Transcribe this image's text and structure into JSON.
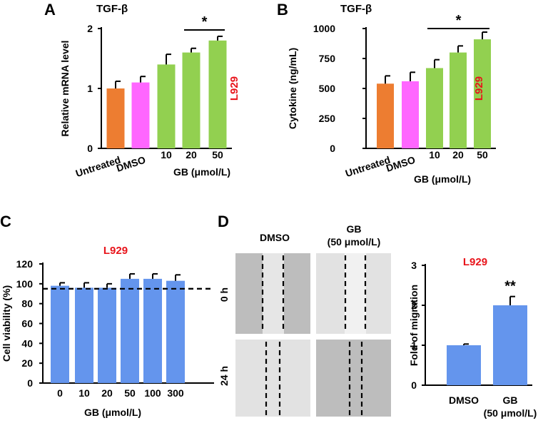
{
  "panels": {
    "A": {
      "letter": "A",
      "title": "TGF-β",
      "cell_line": "L929"
    },
    "B": {
      "letter": "B",
      "title": "TGF-β",
      "cell_line": "L929"
    },
    "C": {
      "letter": "C",
      "cell_line": "L929"
    },
    "D": {
      "letter": "D",
      "cell_line": "L929",
      "col_dmso": "DMSO",
      "col_gb_line1": "GB",
      "col_gb_line2": "(50 μmol/L)",
      "row_0h": "0 h",
      "row_24h": "24 h"
    }
  },
  "chart_data": [
    {
      "id": "A",
      "type": "bar",
      "title": "TGF-β",
      "categories": [
        "Untreated",
        "DMSO",
        "10",
        "20",
        "50"
      ],
      "values": [
        1.0,
        1.1,
        1.4,
        1.6,
        1.8
      ],
      "errors": [
        0.12,
        0.1,
        0.17,
        0.07,
        0.07
      ],
      "colors": [
        "#ed7d31",
        "#ff66ff",
        "#92d050",
        "#92d050",
        "#92d050"
      ],
      "ylabel": "Relative mRNA level",
      "xlabel": "GB (μmol/L)",
      "ylim": [
        0,
        2
      ],
      "yticks": [
        "0",
        "1",
        "2"
      ],
      "yticks_values": [
        0,
        1,
        2
      ],
      "significance": {
        "from": 3,
        "to": 4,
        "label": "*"
      },
      "annotation": "L929"
    },
    {
      "id": "B",
      "type": "bar",
      "title": "TGF-β",
      "categories": [
        "Untreated",
        "DMSO",
        "10",
        "20",
        "50"
      ],
      "values": [
        540,
        560,
        670,
        800,
        910
      ],
      "errors": [
        65,
        75,
        70,
        55,
        60
      ],
      "colors": [
        "#ed7d31",
        "#ff66ff",
        "#92d050",
        "#92d050",
        "#92d050"
      ],
      "ylabel": "Cytokine (ng/mL)",
      "xlabel": "GB (μmol/L)",
      "ylim": [
        0,
        1000
      ],
      "yticks": [
        "0",
        "250",
        "500",
        "750",
        "1000"
      ],
      "yticks_values": [
        0,
        250,
        500,
        750,
        1000
      ],
      "significance": {
        "from": 2,
        "to": 4,
        "label": "*"
      },
      "annotation": "L929"
    },
    {
      "id": "C",
      "type": "bar",
      "categories": [
        "0",
        "10",
        "20",
        "50",
        "100",
        "300"
      ],
      "values": [
        98,
        96,
        96,
        105,
        105,
        103
      ],
      "errors": [
        3,
        5,
        4,
        5,
        5,
        6
      ],
      "colors": [
        "#6495ed",
        "#6495ed",
        "#6495ed",
        "#6495ed",
        "#6495ed",
        "#6495ed"
      ],
      "ylabel": "Cell viability (%)",
      "xlabel": "GB (μmol/L)",
      "ylim": [
        0,
        120
      ],
      "yticks": [
        "0",
        "20",
        "40",
        "60",
        "80",
        "100",
        "120"
      ],
      "yticks_values": [
        0,
        20,
        40,
        60,
        80,
        100,
        120
      ],
      "reference_line": 95,
      "annotation": "L929"
    },
    {
      "id": "D",
      "type": "bar",
      "categories": [
        "DMSO",
        "GB (50 μmol/L)"
      ],
      "category_lines": [
        [
          "DMSO"
        ],
        [
          "GB",
          "(50 μmol/L)"
        ]
      ],
      "values": [
        1.0,
        2.0
      ],
      "errors": [
        0.03,
        0.22
      ],
      "colors": [
        "#6495ed",
        "#6495ed"
      ],
      "ylabel": "Fold of migration",
      "ylim": [
        0,
        3
      ],
      "yticks": [
        "0",
        "1",
        "2",
        "3"
      ],
      "yticks_values": [
        0,
        1,
        2,
        3
      ],
      "significance": {
        "bar": 1,
        "label": "**"
      },
      "annotation": "L929"
    }
  ]
}
